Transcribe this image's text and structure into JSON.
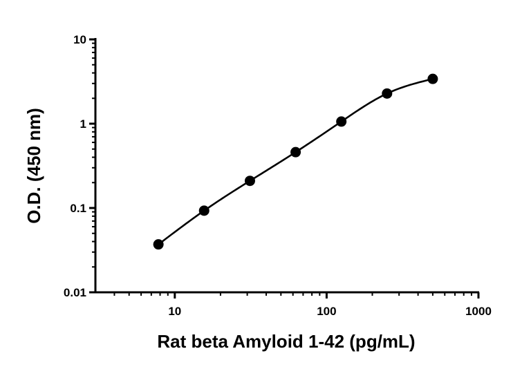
{
  "chart_data": {
    "type": "scatter",
    "title": "",
    "xlabel": "Rat beta Amyloid 1-42 (pg/mL)",
    "ylabel": "O.D. (450 nm)",
    "x_scale": "log",
    "y_scale": "log",
    "xlim": [
      3,
      1000
    ],
    "ylim": [
      0.01,
      10
    ],
    "x_ticks": [
      10,
      100,
      1000
    ],
    "x_tick_labels": [
      "10",
      "100",
      "1000"
    ],
    "y_ticks": [
      0.01,
      0.1,
      1,
      10
    ],
    "y_tick_labels": [
      "0.01",
      "0.1",
      "1",
      "10"
    ],
    "grid": false,
    "legend": false,
    "series": [
      {
        "x": [
          7.8,
          15.6,
          31.25,
          62.5,
          125,
          250,
          500
        ],
        "y": [
          0.037,
          0.093,
          0.21,
          0.46,
          1.06,
          2.28,
          3.4
        ]
      }
    ],
    "fit_curve": {
      "shown": true,
      "x_range": [
        7.8,
        500
      ]
    }
  }
}
